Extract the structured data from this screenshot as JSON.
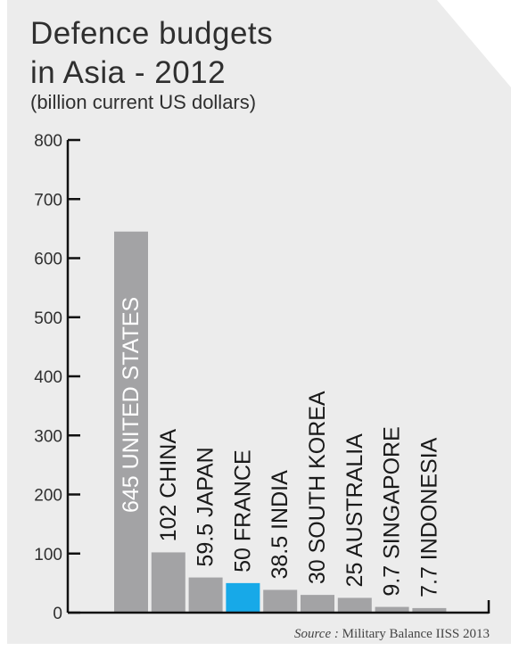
{
  "header": {
    "title_line1": "Defence budgets",
    "title_line2": "in Asia - 2012",
    "subtitle": "(billion current US dollars)"
  },
  "footer": {
    "source_label": "Source :",
    "source_text": "Military Balance IISS 2013"
  },
  "colors": {
    "background_panel": "#ececec",
    "bar": "#a3a3a5",
    "highlight_bar": "#17a9e8",
    "axis": "#111111",
    "text": "#2f2f2f"
  },
  "chart_data": {
    "type": "bar",
    "title": "Defence budgets in Asia - 2012",
    "subtitle": "(billion current US dollars)",
    "categories": [
      "UNITED STATES",
      "CHINA",
      "JAPAN",
      "FRANCE",
      "INDIA",
      "SOUTH KOREA",
      "AUSTRALIA",
      "SINGAPORE",
      "INDONESIA"
    ],
    "values": [
      645,
      102,
      59.5,
      50,
      38.5,
      30,
      25,
      9.7,
      7.7
    ],
    "value_labels": [
      "645",
      "102",
      "59.5",
      "50",
      "38.5",
      "30",
      "25",
      "9.7",
      "7.7"
    ],
    "highlight": "FRANCE",
    "ylim": [
      0,
      800
    ],
    "yticks": [
      0,
      100,
      200,
      300,
      400,
      500,
      600,
      700,
      800
    ],
    "grid": false,
    "legend": "none"
  }
}
